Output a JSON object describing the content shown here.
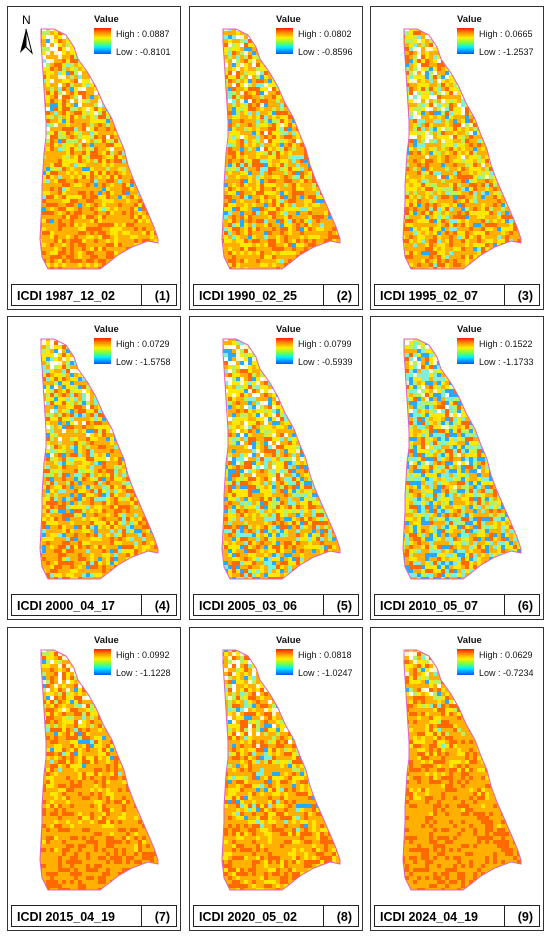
{
  "legend_title": "Value",
  "colors": {
    "high": "#ff1a00",
    "mid": "#ffee00",
    "low": "#0055ff",
    "boundary": "#e060c0"
  },
  "north_label": "N",
  "panels": [
    {
      "label": "ICDI 1987_12_02",
      "number": "(1)",
      "high": "High : 0.0887",
      "low": "Low : -0.8101",
      "orange_share": 0.6,
      "blue_share": 0.08
    },
    {
      "label": "ICDI 1990_02_25",
      "number": "(2)",
      "high": "High : 0.0802",
      "low": "Low : -0.8596",
      "orange_share": 0.55,
      "blue_share": 0.12
    },
    {
      "label": "ICDI 1995_02_07",
      "number": "(3)",
      "high": "High : 0.0665",
      "low": "Low : -1.2537",
      "orange_share": 0.5,
      "blue_share": 0.12
    },
    {
      "label": "ICDI 2000_04_17",
      "number": "(4)",
      "high": "High : 0.0729",
      "low": "Low : -1.5758",
      "orange_share": 0.5,
      "blue_share": 0.15
    },
    {
      "label": "ICDI 2005_03_06",
      "number": "(5)",
      "high": "High : 0.0799",
      "low": "Low : -0.5939",
      "orange_share": 0.4,
      "blue_share": 0.22
    },
    {
      "label": "ICDI 2010_05_07",
      "number": "(6)",
      "high": "High : 0.1522",
      "low": "Low : -1.1733",
      "orange_share": 0.3,
      "blue_share": 0.35
    },
    {
      "label": "ICDI 2015_04_19",
      "number": "(7)",
      "high": "High : 0.0992",
      "low": "Low : -1.1228",
      "orange_share": 0.75,
      "blue_share": 0.06
    },
    {
      "label": "ICDI 2020_05_02",
      "number": "(8)",
      "high": "High : 0.0818",
      "low": "Low : -1.0247",
      "orange_share": 0.62,
      "blue_share": 0.1
    },
    {
      "label": "ICDI 2024_04_19",
      "number": "(9)",
      "high": "High : 0.0629",
      "low": "Low : -0.7234",
      "orange_share": 0.82,
      "blue_share": 0.04
    }
  ]
}
